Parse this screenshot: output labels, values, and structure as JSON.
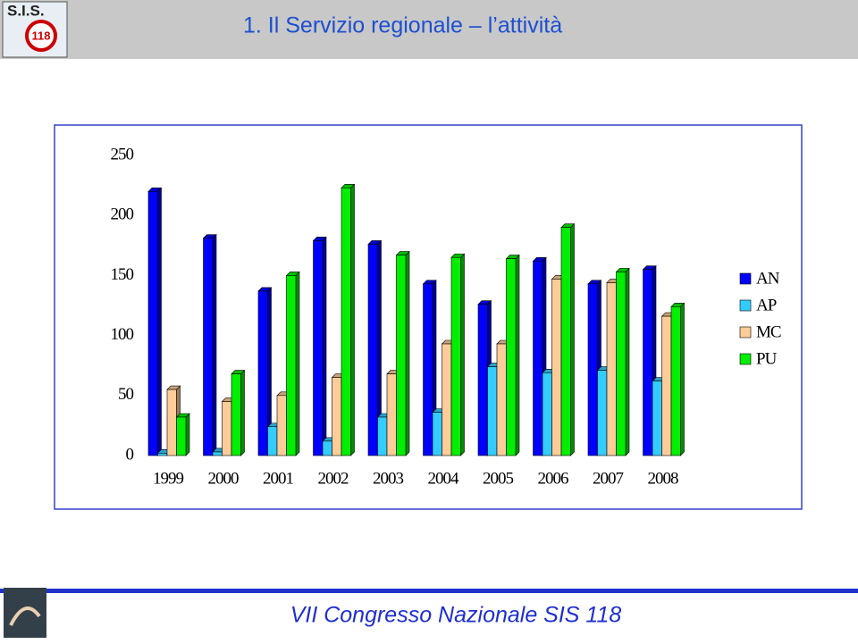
{
  "header": {
    "logo_top": "S.I.S.",
    "logo_badge": "118",
    "title": "1. Il Servizio regionale – l’attività"
  },
  "chart_data": {
    "type": "bar",
    "categories": [
      "1999",
      "2000",
      "2001",
      "2002",
      "2003",
      "2004",
      "2005",
      "2006",
      "2007",
      "2008"
    ],
    "series": [
      {
        "name": "AN",
        "color": "#0000ff",
        "values": [
          220,
          181,
          137,
          179,
          176,
          143,
          126,
          162,
          143,
          155
        ]
      },
      {
        "name": "AP",
        "color": "#33ccff",
        "values": [
          2,
          3,
          24,
          12,
          32,
          36,
          74,
          69,
          71,
          62
        ]
      },
      {
        "name": "MC",
        "color": "#ffcc99",
        "values": [
          55,
          45,
          50,
          65,
          68,
          93,
          93,
          147,
          144,
          116
        ]
      },
      {
        "name": "PU",
        "color": "#00ee00",
        "values": [
          32,
          68,
          150,
          223,
          167,
          165,
          164,
          190,
          153,
          124
        ]
      }
    ],
    "ylim": [
      0,
      250
    ],
    "yticks": [
      0,
      50,
      100,
      150,
      200,
      250
    ],
    "grid": false,
    "legend": "right"
  },
  "footer": {
    "text": "VII Congresso Nazionale SIS 118"
  }
}
